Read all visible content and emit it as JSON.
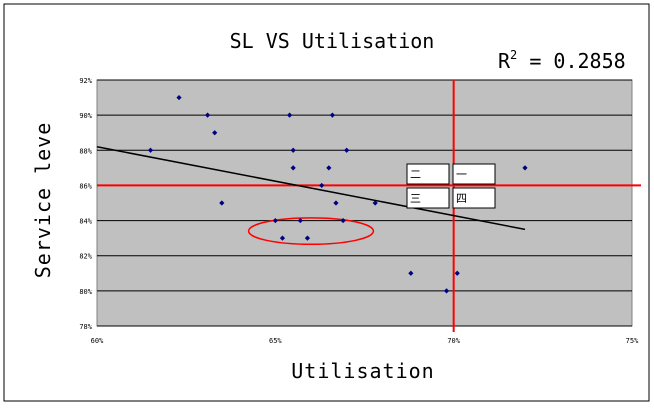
{
  "chart_data": {
    "type": "scatter",
    "title": "SL VS Utilisation",
    "xlabel": "Utilisation",
    "ylabel": "Service leve",
    "xlim": [
      0.6,
      0.75
    ],
    "ylim": [
      0.78,
      0.92
    ],
    "x_ticks": [
      "60%",
      "65%",
      "70%",
      "75%"
    ],
    "y_ticks": [
      "78%",
      "80%",
      "82%",
      "84%",
      "86%",
      "88%",
      "90%",
      "92%"
    ],
    "x_tick_values": [
      0.6,
      0.65,
      0.7,
      0.75
    ],
    "y_tick_values": [
      0.78,
      0.8,
      0.82,
      0.84,
      0.86,
      0.88,
      0.9,
      0.92
    ],
    "grid": "horizontal",
    "r_squared_text": "R2 = 0.2858",
    "r_squared": {
      "prefix": "R",
      "superscript": "2",
      "value": " = 0.2858"
    },
    "points": [
      {
        "x": 0.615,
        "y": 0.88
      },
      {
        "x": 0.623,
        "y": 0.91
      },
      {
        "x": 0.631,
        "y": 0.9
      },
      {
        "x": 0.633,
        "y": 0.89
      },
      {
        "x": 0.635,
        "y": 0.85
      },
      {
        "x": 0.65,
        "y": 0.84
      },
      {
        "x": 0.652,
        "y": 0.83
      },
      {
        "x": 0.654,
        "y": 0.9
      },
      {
        "x": 0.655,
        "y": 0.88
      },
      {
        "x": 0.655,
        "y": 0.87
      },
      {
        "x": 0.657,
        "y": 0.84
      },
      {
        "x": 0.659,
        "y": 0.83
      },
      {
        "x": 0.663,
        "y": 0.86
      },
      {
        "x": 0.665,
        "y": 0.87
      },
      {
        "x": 0.666,
        "y": 0.9
      },
      {
        "x": 0.667,
        "y": 0.85
      },
      {
        "x": 0.669,
        "y": 0.84
      },
      {
        "x": 0.67,
        "y": 0.88
      },
      {
        "x": 0.678,
        "y": 0.85
      },
      {
        "x": 0.688,
        "y": 0.81
      },
      {
        "x": 0.698,
        "y": 0.8
      },
      {
        "x": 0.701,
        "y": 0.81
      },
      {
        "x": 0.72,
        "y": 0.87
      }
    ],
    "trendline": {
      "x": [
        0.6,
        0.72
      ],
      "y": [
        0.882,
        0.835
      ]
    },
    "reference_lines": {
      "x": 0.7,
      "y": 0.86
    },
    "highlight_ellipse": {
      "cx": 0.66,
      "cy": 0.834,
      "rx": 0.0175,
      "ry": 0.0075
    },
    "quadrant_labels": [
      "二",
      "一",
      "三",
      "四"
    ],
    "colors": {
      "plot_bg": "#c0c0c0",
      "marker": "#000080",
      "trend": "#000000",
      "reference": "#ff0000",
      "ellipse": "#ff0000",
      "grid": "#000000"
    }
  }
}
